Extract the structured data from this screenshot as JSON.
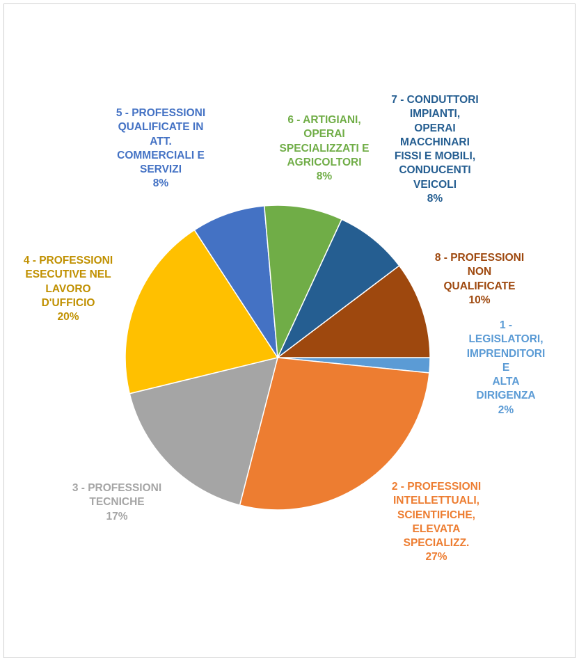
{
  "chart_data": {
    "type": "pie",
    "slices": [
      {
        "name": "1 - LEGISLATORI, IMPRENDITORI E ALTA DIRIGENZA",
        "label_lines": [
          "1 - LEGISLATORI,",
          "IMPRENDITORI E",
          "ALTA DIRIGENZA"
        ],
        "value": 1.6,
        "label": "2%",
        "color": "#5B9BD5"
      },
      {
        "name": "2 - PROFESSIONI INTELLETTUALI, SCIENTIFICHE, ELEVATA SPECIALIZZ.",
        "label_lines": [
          "2 - PROFESSIONI",
          "INTELLETTUALI,",
          "SCIENTIFICHE,",
          "ELEVATA",
          "SPECIALIZZ."
        ],
        "value": 27.4,
        "label": "27%",
        "color": "#ED7D31"
      },
      {
        "name": "3 - PROFESSIONI TECNICHE",
        "label_lines": [
          "3 - PROFESSIONI",
          "TECNICHE"
        ],
        "value": 17.2,
        "label": "17%",
        "color": "#A5A5A5"
      },
      {
        "name": "4 - PROFESSIONI ESECUTIVE NEL LAVORO D'UFFICIO",
        "label_lines": [
          "4 - PROFESSIONI",
          "ESECUTIVE NEL",
          "LAVORO",
          "D'UFFICIO"
        ],
        "value": 19.6,
        "label": "20%",
        "color": "#FFC000"
      },
      {
        "name": "5 - PROFESSIONI QUALIFICATE IN ATT. COMMERCIALI E SERVIZI",
        "label_lines": [
          "5 - PROFESSIONI",
          "QUALIFICATE IN",
          "ATT.",
          "COMMERCIALI E",
          "SERVIZI"
        ],
        "value": 7.8,
        "label": "8%",
        "color": "#4472C4"
      },
      {
        "name": "6 - ARTIGIANI, OPERAI SPECIALIZZATI E AGRICOLTORI",
        "label_lines": [
          "6 - ARTIGIANI,",
          "OPERAI",
          "SPECIALIZZATI E",
          "AGRICOLTORI"
        ],
        "value": 8.3,
        "label": "8%",
        "color": "#70AD47"
      },
      {
        "name": "7 - CONDUTTORI IMPIANTI, OPERAI MACCHINARI FISSI E MOBILI, CONDUCENTI VEICOLI",
        "label_lines": [
          "7 - CONDUTTORI",
          "IMPIANTI,",
          "OPERAI",
          "MACCHINARI",
          "FISSI E MOBILI,",
          "CONDUCENTI",
          "VEICOLI"
        ],
        "value": 7.8,
        "label": "8%",
        "color": "#255E91"
      },
      {
        "name": "8 - PROFESSIONI NON QUALIFICATE",
        "label_lines": [
          "8 - PROFESSIONI",
          "NON",
          "QUALIFICATE"
        ],
        "value": 10.3,
        "label": "10%",
        "color": "#9E480E"
      }
    ],
    "label_colors": [
      "#5B9BD5",
      "#ED7D31",
      "#A5A5A5",
      "#C09000",
      "#4472C4",
      "#70AD47",
      "#255E91",
      "#9E480E"
    ],
    "start_angle_deg": 90,
    "direction": "clockwise",
    "legend": "none",
    "title": ""
  }
}
